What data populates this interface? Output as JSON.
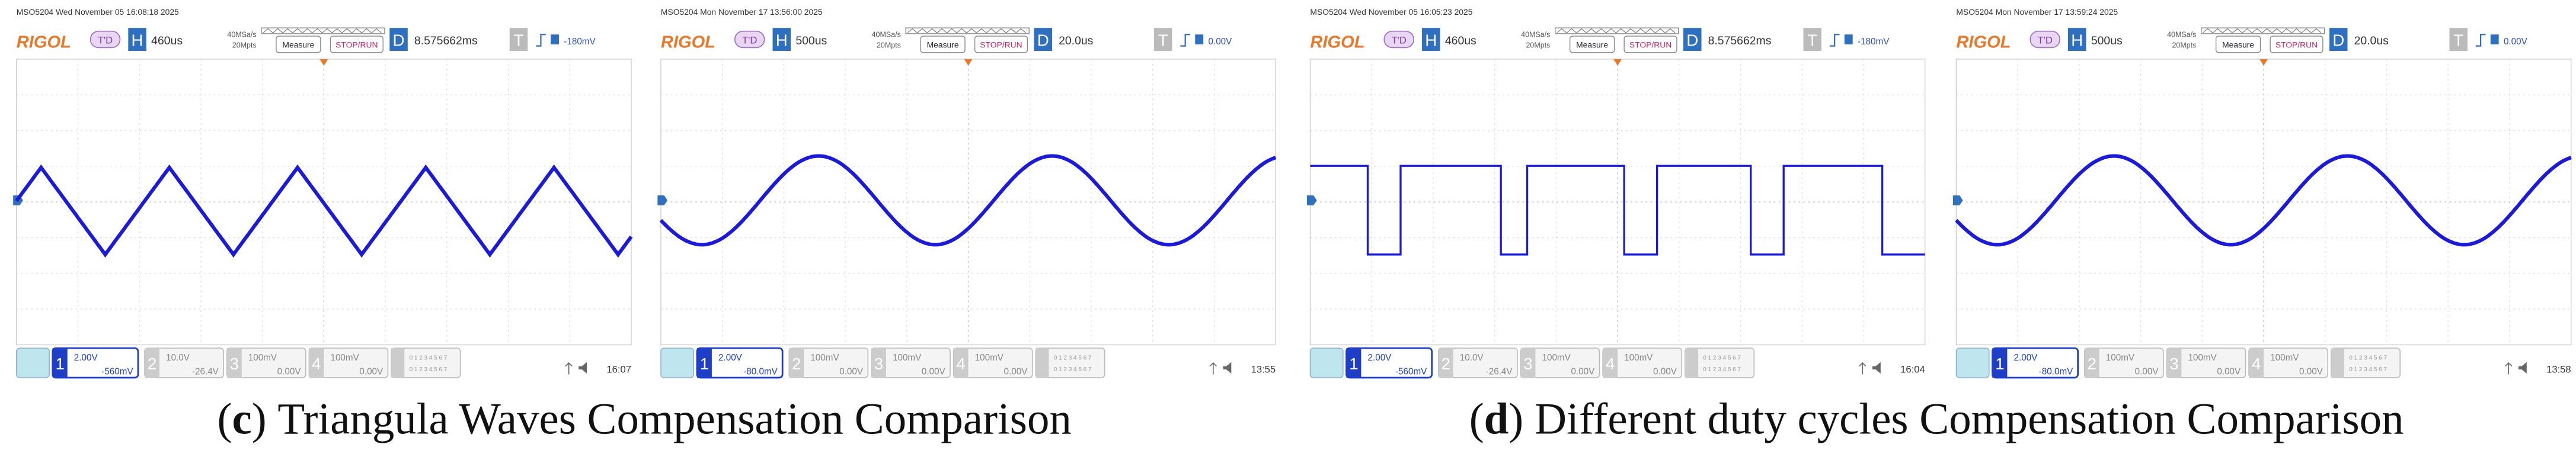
{
  "ui": {
    "brand": "RIGOL",
    "status": "T'D",
    "h": "H",
    "measure": "Measure",
    "stop_run": "STOP/RUN",
    "d": "D",
    "t": "T",
    "digital": "0 1 2 3 4 5 6 7"
  },
  "panels": [
    {
      "header": "MSO5204  Wed November 05 16:08:18 2025",
      "timebase": "460us",
      "sample_rate": "40MSa/s",
      "depth": "20Mpts",
      "delay": "8.575662ms",
      "trigger_level": "-180mV",
      "clock": "16:07",
      "channels": [
        {
          "number": "1",
          "scale": "2.00V",
          "offset": "-560mV"
        },
        {
          "number": "2",
          "scale": "10.0V",
          "offset": "-26.4V"
        },
        {
          "number": "3",
          "scale": "100mV",
          "offset": "0.00V"
        },
        {
          "number": "4",
          "scale": "100mV",
          "offset": "0.00V"
        }
      ]
    },
    {
      "header": "MSO5204  Mon November 17 13:56:00 2025",
      "timebase": "500us",
      "sample_rate": "40MSa/s",
      "depth": "20Mpts",
      "delay": "20.0us",
      "trigger_level": "0.00V",
      "clock": "13:55",
      "channels": [
        {
          "number": "1",
          "scale": "2.00V",
          "offset": "-80.0mV"
        },
        {
          "number": "2",
          "scale": "100mV",
          "offset": "0.00V"
        },
        {
          "number": "3",
          "scale": "100mV",
          "offset": "0.00V"
        },
        {
          "number": "4",
          "scale": "100mV",
          "offset": "0.00V"
        }
      ]
    },
    {
      "header": "MSO5204  Wed November 05 16:05:23 2025",
      "timebase": "460us",
      "sample_rate": "40MSa/s",
      "depth": "20Mpts",
      "delay": "8.575662ms",
      "trigger_level": "-180mV",
      "clock": "16:04",
      "channels": [
        {
          "number": "1",
          "scale": "2.00V",
          "offset": "-560mV"
        },
        {
          "number": "2",
          "scale": "10.0V",
          "offset": "-26.4V"
        },
        {
          "number": "3",
          "scale": "100mV",
          "offset": "0.00V"
        },
        {
          "number": "4",
          "scale": "100mV",
          "offset": "0.00V"
        }
      ]
    },
    {
      "header": "MSO5204  Mon November 17 13:59:24 2025",
      "timebase": "500us",
      "sample_rate": "40MSa/s",
      "depth": "20Mpts",
      "delay": "20.0us",
      "trigger_level": "0.00V",
      "clock": "13:58",
      "channels": [
        {
          "number": "1",
          "scale": "2.00V",
          "offset": "-80.0mV"
        },
        {
          "number": "2",
          "scale": "100mV",
          "offset": "0.00V"
        },
        {
          "number": "3",
          "scale": "100mV",
          "offset": "0.00V"
        },
        {
          "number": "4",
          "scale": "100mV",
          "offset": "0.00V"
        }
      ]
    }
  ],
  "captions": [
    {
      "open": "(",
      "label": "c",
      "close": ")",
      "text": "Triangula Waves Compensation Comparison"
    },
    {
      "open": "(",
      "label": "d",
      "close": ")",
      "text": "Different duty cycles Compensation Comparison"
    }
  ]
}
